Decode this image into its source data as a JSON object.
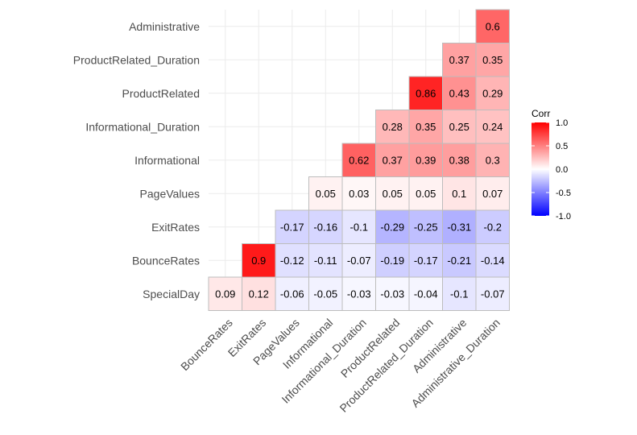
{
  "chart_data": {
    "type": "heatmap",
    "title": "",
    "xlabel": "",
    "ylabel": "",
    "x_categories": [
      "BounceRates",
      "ExitRates",
      "PageValues",
      "Informational",
      "Informational_Duration",
      "ProductRelated",
      "ProductRelated_Duration",
      "Administrative",
      "Administrative_Duration"
    ],
    "y_categories": [
      "SpecialDay",
      "BounceRates",
      "ExitRates",
      "PageValues",
      "Informational",
      "Informational_Duration",
      "ProductRelated",
      "ProductRelated_Duration",
      "Administrative"
    ],
    "cells": [
      {
        "x": "BounceRates",
        "y": "SpecialDay",
        "value": 0.09,
        "label": "0.09"
      },
      {
        "x": "ExitRates",
        "y": "SpecialDay",
        "value": 0.12,
        "label": "0.12"
      },
      {
        "x": "PageValues",
        "y": "SpecialDay",
        "value": -0.06,
        "label": "-0.06"
      },
      {
        "x": "Informational",
        "y": "SpecialDay",
        "value": -0.05,
        "label": "-0.05"
      },
      {
        "x": "Informational_Duration",
        "y": "SpecialDay",
        "value": -0.03,
        "label": "-0.03"
      },
      {
        "x": "ProductRelated",
        "y": "SpecialDay",
        "value": -0.03,
        "label": "-0.03"
      },
      {
        "x": "ProductRelated_Duration",
        "y": "SpecialDay",
        "value": -0.04,
        "label": "-0.04"
      },
      {
        "x": "Administrative",
        "y": "SpecialDay",
        "value": -0.1,
        "label": "-0.1"
      },
      {
        "x": "Administrative_Duration",
        "y": "SpecialDay",
        "value": -0.07,
        "label": "-0.07"
      },
      {
        "x": "ExitRates",
        "y": "BounceRates",
        "value": 0.9,
        "label": "0.9"
      },
      {
        "x": "PageValues",
        "y": "BounceRates",
        "value": -0.12,
        "label": "-0.12"
      },
      {
        "x": "Informational",
        "y": "BounceRates",
        "value": -0.11,
        "label": "-0.11"
      },
      {
        "x": "Informational_Duration",
        "y": "BounceRates",
        "value": -0.07,
        "label": "-0.07"
      },
      {
        "x": "ProductRelated",
        "y": "BounceRates",
        "value": -0.19,
        "label": "-0.19"
      },
      {
        "x": "ProductRelated_Duration",
        "y": "BounceRates",
        "value": -0.17,
        "label": "-0.17"
      },
      {
        "x": "Administrative",
        "y": "BounceRates",
        "value": -0.21,
        "label": "-0.21"
      },
      {
        "x": "Administrative_Duration",
        "y": "BounceRates",
        "value": -0.14,
        "label": "-0.14"
      },
      {
        "x": "PageValues",
        "y": "ExitRates",
        "value": -0.17,
        "label": "-0.17"
      },
      {
        "x": "Informational",
        "y": "ExitRates",
        "value": -0.16,
        "label": "-0.16"
      },
      {
        "x": "Informational_Duration",
        "y": "ExitRates",
        "value": -0.1,
        "label": "-0.1"
      },
      {
        "x": "ProductRelated",
        "y": "ExitRates",
        "value": -0.29,
        "label": "-0.29"
      },
      {
        "x": "ProductRelated_Duration",
        "y": "ExitRates",
        "value": -0.25,
        "label": "-0.25"
      },
      {
        "x": "Administrative",
        "y": "ExitRates",
        "value": -0.31,
        "label": "-0.31"
      },
      {
        "x": "Administrative_Duration",
        "y": "ExitRates",
        "value": -0.2,
        "label": "-0.2"
      },
      {
        "x": "Informational",
        "y": "PageValues",
        "value": 0.05,
        "label": "0.05"
      },
      {
        "x": "Informational_Duration",
        "y": "PageValues",
        "value": 0.03,
        "label": "0.03"
      },
      {
        "x": "ProductRelated",
        "y": "PageValues",
        "value": 0.05,
        "label": "0.05"
      },
      {
        "x": "ProductRelated_Duration",
        "y": "PageValues",
        "value": 0.05,
        "label": "0.05"
      },
      {
        "x": "Administrative",
        "y": "PageValues",
        "value": 0.1,
        "label": "0.1"
      },
      {
        "x": "Administrative_Duration",
        "y": "PageValues",
        "value": 0.07,
        "label": "0.07"
      },
      {
        "x": "Informational_Duration",
        "y": "Informational",
        "value": 0.62,
        "label": "0.62"
      },
      {
        "x": "ProductRelated",
        "y": "Informational",
        "value": 0.37,
        "label": "0.37"
      },
      {
        "x": "ProductRelated_Duration",
        "y": "Informational",
        "value": 0.39,
        "label": "0.39"
      },
      {
        "x": "Administrative",
        "y": "Informational",
        "value": 0.38,
        "label": "0.38"
      },
      {
        "x": "Administrative_Duration",
        "y": "Informational",
        "value": 0.3,
        "label": "0.3"
      },
      {
        "x": "ProductRelated",
        "y": "Informational_Duration",
        "value": 0.28,
        "label": "0.28"
      },
      {
        "x": "ProductRelated_Duration",
        "y": "Informational_Duration",
        "value": 0.35,
        "label": "0.35"
      },
      {
        "x": "Administrative",
        "y": "Informational_Duration",
        "value": 0.25,
        "label": "0.25"
      },
      {
        "x": "Administrative_Duration",
        "y": "Informational_Duration",
        "value": 0.24,
        "label": "0.24"
      },
      {
        "x": "ProductRelated_Duration",
        "y": "ProductRelated",
        "value": 0.86,
        "label": "0.86"
      },
      {
        "x": "Administrative",
        "y": "ProductRelated",
        "value": 0.43,
        "label": "0.43"
      },
      {
        "x": "Administrative_Duration",
        "y": "ProductRelated",
        "value": 0.29,
        "label": "0.29"
      },
      {
        "x": "Administrative",
        "y": "ProductRelated_Duration",
        "value": 0.37,
        "label": "0.37"
      },
      {
        "x": "Administrative_Duration",
        "y": "ProductRelated_Duration",
        "value": 0.35,
        "label": "0.35"
      },
      {
        "x": "Administrative_Duration",
        "y": "Administrative",
        "value": 0.6,
        "label": "0.6"
      }
    ],
    "color_scale": {
      "low": "#0000ff",
      "mid": "#ffffff",
      "high": "#ff0000",
      "limits": [
        -1,
        1
      ]
    },
    "legend": {
      "title": "Corr",
      "placement": "right",
      "ticks": [
        {
          "value": 1,
          "label": "1.0"
        },
        {
          "value": 0.5,
          "label": "0.5"
        },
        {
          "value": 0,
          "label": "0.0"
        },
        {
          "value": -0.5,
          "label": "-0.5"
        },
        {
          "value": -1,
          "label": "-1.0"
        }
      ]
    },
    "grid": true,
    "cell_border_color": "#bdbdbd"
  }
}
